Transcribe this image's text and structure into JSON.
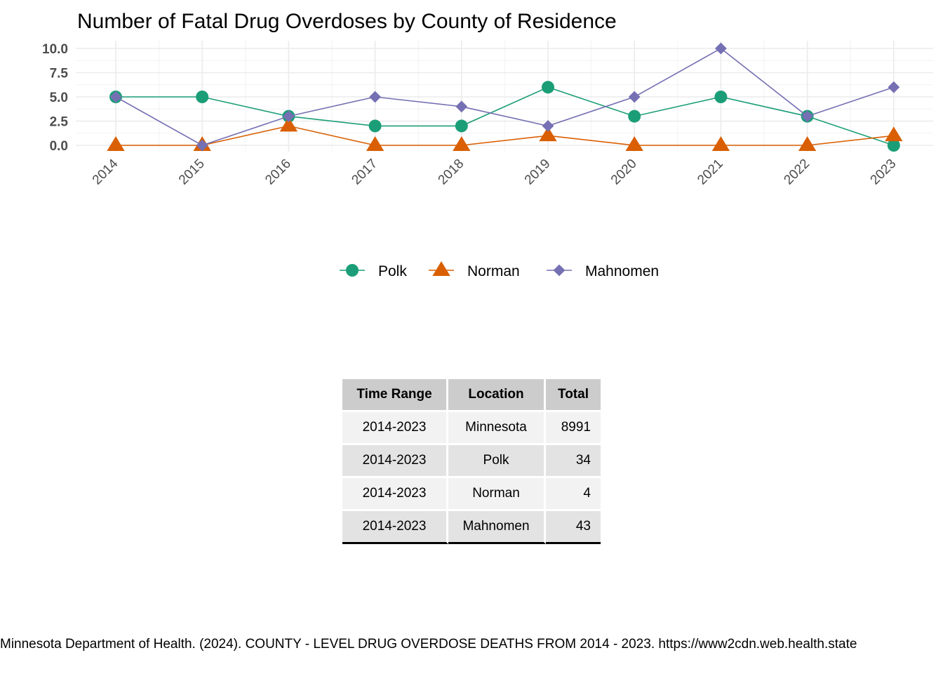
{
  "chart_data": {
    "type": "line",
    "title": "Number of Fatal Drug Overdoses by County of Residence",
    "xlabel": "",
    "ylabel": "",
    "categories": [
      "2014",
      "2015",
      "2016",
      "2017",
      "2018",
      "2019",
      "2020",
      "2021",
      "2022",
      "2023"
    ],
    "ylim": [
      0,
      10
    ],
    "yticks": [
      "0.0",
      "2.5",
      "5.0",
      "7.5",
      "10.0"
    ],
    "grid": true,
    "legend_position": "bottom",
    "series": [
      {
        "name": "Polk",
        "color": "#1b9e77",
        "marker": "circle",
        "values": [
          5,
          5,
          3,
          2,
          2,
          6,
          3,
          5,
          3,
          0
        ]
      },
      {
        "name": "Norman",
        "color": "#d95f02",
        "marker": "triangle",
        "values": [
          0,
          0,
          2,
          0,
          0,
          1,
          0,
          0,
          0,
          1
        ]
      },
      {
        "name": "Mahnomen",
        "color": "#7570b3",
        "marker": "diamond",
        "values": [
          5,
          0,
          3,
          5,
          4,
          2,
          5,
          10,
          3,
          6
        ]
      }
    ]
  },
  "table": {
    "headers": [
      "Time Range",
      "Location",
      "Total"
    ],
    "rows": [
      [
        "2014-2023",
        "Minnesota",
        "8991"
      ],
      [
        "2014-2023",
        "Polk",
        "34"
      ],
      [
        "2014-2023",
        "Norman",
        "4"
      ],
      [
        "2014-2023",
        "Mahnomen",
        "43"
      ]
    ]
  },
  "source_note": "Minnesota Department of Health. (2024). COUNTY - LEVEL DRUG OVERDOSE DEATHS FROM 2014 - 2023. https://www2cdn.web.health.state"
}
